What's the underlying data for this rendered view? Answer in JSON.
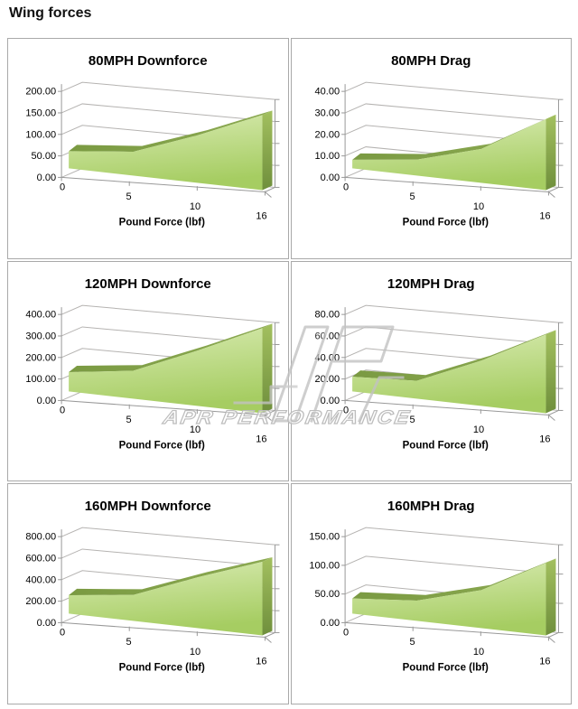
{
  "page": {
    "title": "Wing forces"
  },
  "watermark": {
    "text": "APR PERFORMANCE"
  },
  "colors": {
    "area_top_band_1": "#7a9a42",
    "area_top_band_2": "#8caa52",
    "area_face_light": "#d9ebb3",
    "area_face_dark": "#a6cd62",
    "area_side_light": "#a3c05f",
    "area_side_dark": "#6f8f3c",
    "gridline": "#b5b3b1",
    "axis": "#999999",
    "panel_border": "#a9a9a9",
    "text": "#000000",
    "watermark_gray": "#bdbdbd"
  },
  "chart_data": [
    {
      "type": "area",
      "title": "80MPH Downforce",
      "xlabel": "Pound Force (lbf)",
      "categories": [
        0,
        5,
        10,
        16
      ],
      "xtick_labels": [
        "0",
        "5",
        "10",
        "16"
      ],
      "values": [
        50,
        60,
        105,
        148
      ],
      "ylim": [
        0,
        200
      ],
      "ytick_step": 50,
      "ytick_labels": [
        "0.00",
        "50.00",
        "100.00",
        "150.00",
        "200.00"
      ],
      "grid": true,
      "legend": false
    },
    {
      "type": "area",
      "title": "80MPH Drag",
      "xlabel": "Pound Force (lbf)",
      "categories": [
        0,
        5,
        10,
        16
      ],
      "xtick_labels": [
        "0",
        "5",
        "10",
        "16"
      ],
      "values": [
        5,
        8,
        15,
        28
      ],
      "ylim": [
        0,
        40
      ],
      "ytick_step": 10,
      "ytick_labels": [
        "0.00",
        "10.00",
        "20.00",
        "30.00",
        "40.00"
      ],
      "grid": true,
      "legend": false
    },
    {
      "type": "area",
      "title": "120MPH Downforce",
      "xlabel": "Pound Force (lbf)",
      "categories": [
        0,
        5,
        10,
        16
      ],
      "xtick_labels": [
        "0",
        "5",
        "10",
        "16"
      ],
      "values": [
        112,
        140,
        245,
        335
      ],
      "ylim": [
        0,
        400
      ],
      "ytick_step": 100,
      "ytick_labels": [
        "0.00",
        "100.00",
        "200.00",
        "300.00",
        "400.00"
      ],
      "grid": true,
      "legend": false
    },
    {
      "type": "area",
      "title": "120MPH Drag",
      "xlabel": "Pound Force (lbf)",
      "categories": [
        0,
        5,
        10,
        16
      ],
      "xtick_labels": [
        "0",
        "5",
        "10",
        "16"
      ],
      "values": [
        17,
        18,
        40,
        62
      ],
      "ylim": [
        0,
        80
      ],
      "ytick_step": 20,
      "ytick_labels": [
        "0.00",
        "20.00",
        "40.00",
        "60.00",
        "80.00"
      ],
      "grid": true,
      "legend": false
    },
    {
      "type": "area",
      "title": "160MPH Downforce",
      "xlabel": "Pound Force (lbf)",
      "categories": [
        0,
        5,
        10,
        16
      ],
      "xtick_labels": [
        "0",
        "5",
        "10",
        "16"
      ],
      "values": [
        215,
        260,
        450,
        580
      ],
      "ylim": [
        0,
        800
      ],
      "ytick_step": 200,
      "ytick_labels": [
        "0.00",
        "200.00",
        "400.00",
        "600.00",
        "800.00"
      ],
      "grid": true,
      "legend": false
    },
    {
      "type": "area",
      "title": "160MPH Drag",
      "xlabel": "Pound Force (lbf)",
      "categories": [
        0,
        5,
        10,
        16
      ],
      "xtick_labels": [
        "0",
        "5",
        "10",
        "16"
      ],
      "values": [
        33,
        38,
        63,
        107
      ],
      "ylim": [
        0,
        150
      ],
      "ytick_step": 50,
      "ytick_labels": [
        "0.00",
        "50.00",
        "100.00",
        "150.00"
      ],
      "grid": true,
      "legend": false
    }
  ]
}
